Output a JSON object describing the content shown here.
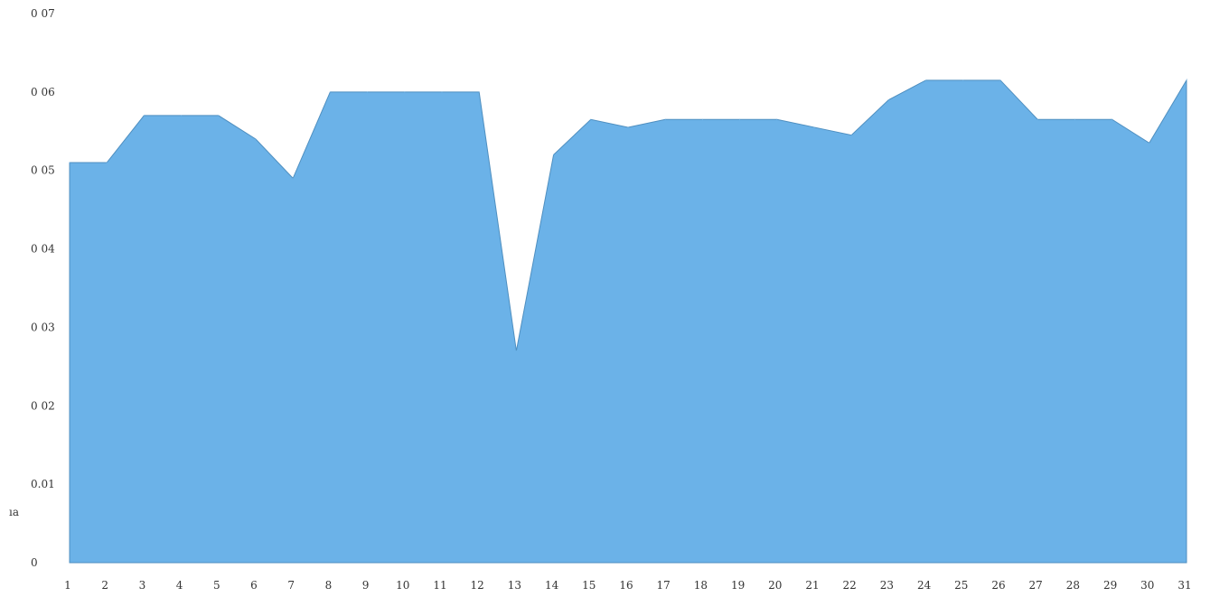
{
  "chart_data": {
    "type": "area",
    "title": "",
    "xlabel": "",
    "ylabel": "",
    "stray_label": "ıa",
    "x": [
      "1",
      "2",
      "3",
      "4",
      "5",
      "6",
      "7",
      "8",
      "9",
      "10",
      "11",
      "12",
      "13",
      "14",
      "15",
      "16",
      "17",
      "18",
      "19",
      "20",
      "21",
      "22",
      "23",
      "24",
      "25",
      "26",
      "27",
      "28",
      "29",
      "30",
      "31"
    ],
    "series": [
      {
        "values": [
          0.051,
          0.051,
          0.057,
          0.057,
          0.057,
          0.054,
          0.049,
          0.06,
          0.06,
          0.06,
          0.06,
          0.06,
          0.027,
          0.052,
          0.0565,
          0.0555,
          0.0565,
          0.0565,
          0.0565,
          0.0565,
          0.0555,
          0.0545,
          0.059,
          0.0615,
          0.0615,
          0.0615,
          0.0565,
          0.0565,
          0.0565,
          0.0535,
          0.0615
        ],
        "color": "#6bb2e8"
      }
    ],
    "ylim": [
      0,
      0.07
    ],
    "y_ticks": [
      {
        "value": 0,
        "label": "0"
      },
      {
        "value": 0.01,
        "label": "0.01"
      },
      {
        "value": 0.02,
        "label": "0 02"
      },
      {
        "value": 0.03,
        "label": "0 03"
      },
      {
        "value": 0.04,
        "label": "0 04"
      },
      {
        "value": 0.05,
        "label": "0 05"
      },
      {
        "value": 0.06,
        "label": "0 06"
      },
      {
        "value": 0.07,
        "label": "0 07"
      }
    ],
    "grid": false,
    "legend": "none"
  }
}
